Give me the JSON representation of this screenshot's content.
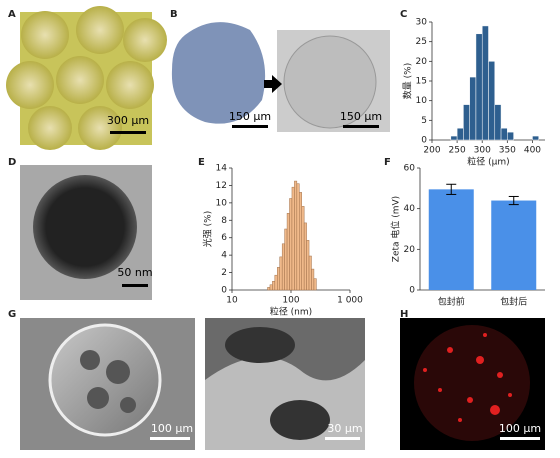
{
  "figure": {
    "panel_labels": [
      "A",
      "B",
      "C",
      "D",
      "E",
      "F",
      "G",
      "H"
    ],
    "scale_bars": [
      "300 μm",
      "150 μm",
      "150 μm",
      "50 nm",
      "100 μm",
      "30 μm",
      "100 μm"
    ]
  },
  "chart_data": [
    {
      "type": "histogram",
      "ylabel": "数量 (%)",
      "xlabel": "粒径 (μm)",
      "color": "#2e5f8f",
      "bins": [
        237.5,
        250,
        262.5,
        275,
        287.5,
        300,
        312.5,
        325,
        337.5,
        350,
        362.5,
        375,
        387.5,
        400,
        412.5
      ],
      "values": [
        1,
        3,
        9,
        16,
        27,
        29,
        20,
        9,
        3,
        2,
        0,
        0,
        0,
        1
      ],
      "xlim": [
        200,
        425
      ],
      "xticks": [
        200,
        250,
        300,
        350,
        400
      ],
      "ylim": [
        0,
        30
      ],
      "yticks": [
        0,
        5,
        10,
        15,
        20,
        25,
        30
      ]
    },
    {
      "type": "histogram",
      "ylabel": "光强 (%)",
      "xlabel": "粒径 (nm)",
      "color": "#f0b98a",
      "xscale": "log",
      "bins": [
        40,
        44,
        48.4,
        53.2,
        58.6,
        64.4,
        70.9,
        78,
        85.8,
        94.3,
        103.8,
        114.2,
        125.6,
        138.1,
        151.9,
        167.1,
        183.8,
        202.2,
        222.4,
        244.7,
        269.1
      ],
      "values": [
        0.3,
        0.6,
        1,
        1.7,
        2.6,
        3.8,
        5.3,
        7,
        8.8,
        10.5,
        11.8,
        12.5,
        12.2,
        11.2,
        9.6,
        7.7,
        5.7,
        3.9,
        2.4,
        1.3
      ],
      "xlim": [
        10,
        1000
      ],
      "xticks": [
        10,
        100,
        {
          "value": 1000,
          "label": "1 000"
        }
      ],
      "ylim": [
        0,
        14
      ],
      "yticks": [
        0,
        2,
        4,
        6,
        8,
        10,
        12,
        14
      ]
    },
    {
      "type": "bar",
      "ylabel": "Zeta 电位 (mV)",
      "color": "#4a90e8",
      "categories": [
        "包封前",
        "包封后"
      ],
      "values": [
        49.5,
        44
      ],
      "errors": [
        2.5,
        2
      ],
      "ylim": [
        0,
        60
      ],
      "yticks": [
        0,
        20,
        40,
        60
      ]
    }
  ]
}
